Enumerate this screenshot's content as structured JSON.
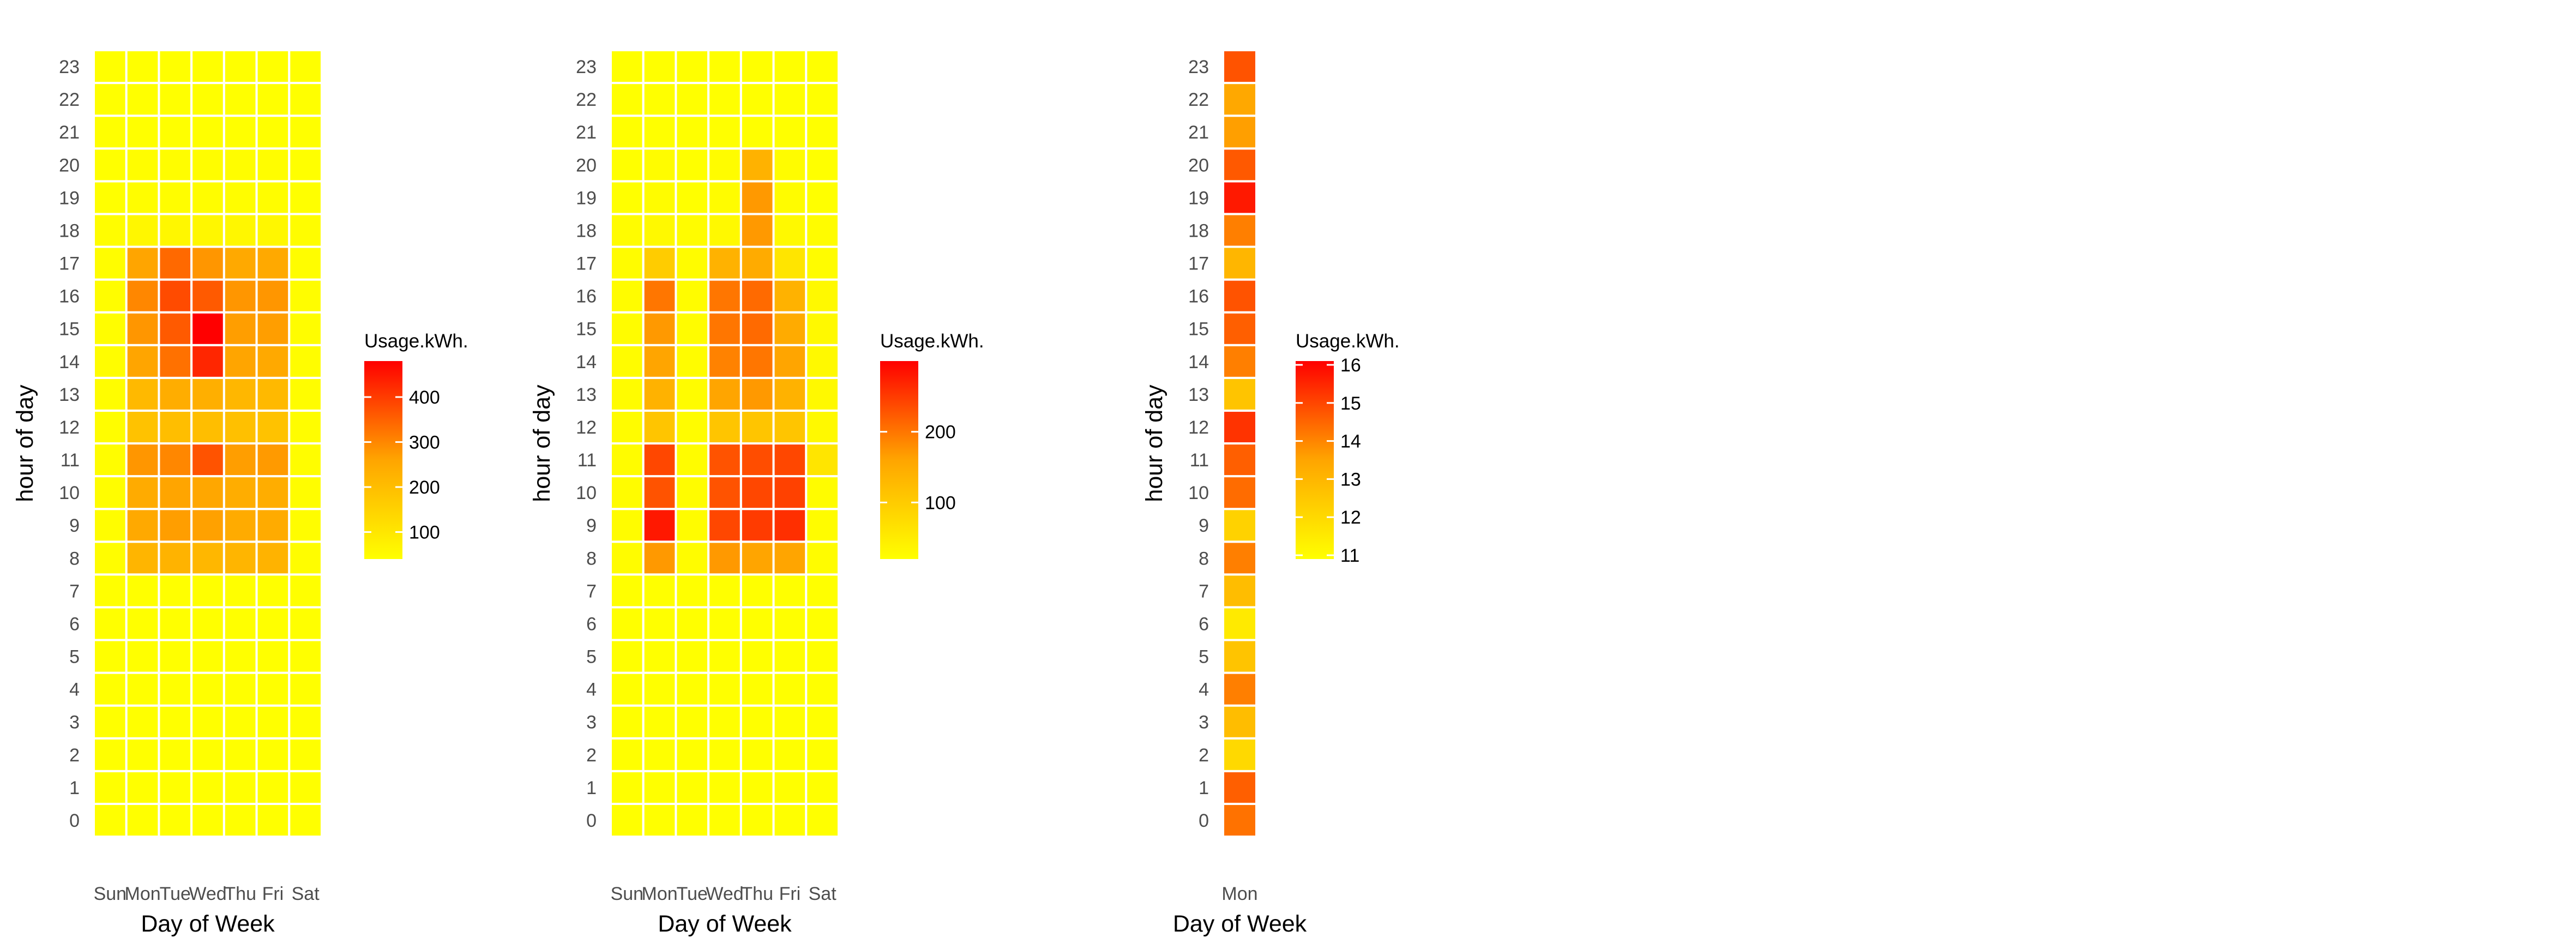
{
  "colors": {
    "low": "#ffff00",
    "mid": "#ffa500",
    "high": "#ff0000",
    "grid": "#ffffff",
    "tick_text": "#4d4d4d",
    "title_text": "#000000"
  },
  "chart_data": [
    {
      "type": "heatmap",
      "xlabel": "Day of Week",
      "ylabel": "hour of day",
      "x_categories": [
        "Sun",
        "Mon",
        "Tue",
        "Wed",
        "Thu",
        "Fri",
        "Sat"
      ],
      "y_categories": [
        "0",
        "1",
        "2",
        "3",
        "4",
        "5",
        "6",
        "7",
        "8",
        "9",
        "10",
        "11",
        "12",
        "13",
        "14",
        "15",
        "16",
        "17",
        "18",
        "19",
        "20",
        "21",
        "22",
        "23"
      ],
      "legend": {
        "title": "Usage.kWh.",
        "limits": [
          40,
          480
        ],
        "breaks": [
          100,
          200,
          300,
          400
        ],
        "placement": "right"
      },
      "values": [
        [
          40,
          40,
          40,
          40,
          40,
          40,
          40
        ],
        [
          40,
          40,
          40,
          40,
          40,
          40,
          40
        ],
        [
          40,
          40,
          40,
          40,
          40,
          40,
          40
        ],
        [
          40,
          40,
          40,
          40,
          40,
          40,
          40
        ],
        [
          40,
          40,
          40,
          40,
          40,
          40,
          40
        ],
        [
          40,
          40,
          40,
          40,
          40,
          40,
          40
        ],
        [
          40,
          40,
          40,
          40,
          40,
          40,
          40
        ],
        [
          40,
          40,
          40,
          40,
          40,
          40,
          40
        ],
        [
          45,
          220,
          225,
          215,
          220,
          225,
          45
        ],
        [
          45,
          250,
          270,
          265,
          245,
          245,
          45
        ],
        [
          45,
          245,
          260,
          255,
          240,
          240,
          45
        ],
        [
          45,
          280,
          300,
          370,
          270,
          275,
          45
        ],
        [
          45,
          190,
          200,
          200,
          195,
          190,
          45
        ],
        [
          45,
          210,
          240,
          235,
          215,
          210,
          45
        ],
        [
          45,
          260,
          330,
          430,
          260,
          250,
          45
        ],
        [
          45,
          280,
          360,
          480,
          270,
          270,
          45
        ],
        [
          45,
          300,
          380,
          360,
          280,
          280,
          45
        ],
        [
          45,
          260,
          340,
          280,
          250,
          250,
          45
        ],
        [
          45,
          60,
          60,
          60,
          60,
          60,
          45
        ],
        [
          40,
          45,
          45,
          45,
          45,
          45,
          40
        ],
        [
          40,
          45,
          45,
          45,
          45,
          45,
          40
        ],
        [
          40,
          40,
          40,
          40,
          40,
          40,
          40
        ],
        [
          40,
          40,
          40,
          40,
          40,
          40,
          40
        ],
        [
          40,
          40,
          40,
          40,
          40,
          40,
          40
        ]
      ]
    },
    {
      "type": "heatmap",
      "xlabel": "Day of Week",
      "ylabel": "hour of day",
      "x_categories": [
        "Sun",
        "Mon",
        "Tue",
        "Wed",
        "Thu",
        "Fri",
        "Sat"
      ],
      "y_categories": [
        "0",
        "1",
        "2",
        "3",
        "4",
        "5",
        "6",
        "7",
        "8",
        "9",
        "10",
        "11",
        "12",
        "13",
        "14",
        "15",
        "16",
        "17",
        "18",
        "19",
        "20",
        "21",
        "22",
        "23"
      ],
      "legend": {
        "title": "Usage.kWh.",
        "limits": [
          20,
          300
        ],
        "breaks": [
          100,
          200
        ],
        "placement": "right"
      },
      "values": [
        [
          20,
          20,
          20,
          20,
          20,
          20,
          20
        ],
        [
          20,
          20,
          20,
          20,
          20,
          20,
          20
        ],
        [
          20,
          20,
          20,
          20,
          20,
          20,
          20
        ],
        [
          20,
          20,
          20,
          20,
          20,
          20,
          20
        ],
        [
          20,
          20,
          20,
          20,
          20,
          20,
          20
        ],
        [
          20,
          20,
          20,
          20,
          20,
          20,
          20
        ],
        [
          20,
          20,
          20,
          20,
          20,
          20,
          20
        ],
        [
          20,
          20,
          20,
          20,
          20,
          20,
          20
        ],
        [
          25,
          170,
          25,
          170,
          160,
          160,
          25
        ],
        [
          25,
          280,
          25,
          240,
          250,
          260,
          25
        ],
        [
          25,
          230,
          25,
          230,
          240,
          245,
          25
        ],
        [
          25,
          240,
          25,
          230,
          235,
          240,
          60
        ],
        [
          25,
          110,
          25,
          110,
          110,
          110,
          30
        ],
        [
          25,
          140,
          25,
          160,
          170,
          140,
          30
        ],
        [
          25,
          160,
          25,
          190,
          200,
          160,
          30
        ],
        [
          25,
          170,
          25,
          200,
          210,
          150,
          30
        ],
        [
          25,
          200,
          25,
          200,
          210,
          140,
          30
        ],
        [
          25,
          100,
          25,
          140,
          150,
          60,
          25
        ],
        [
          25,
          30,
          25,
          30,
          170,
          30,
          25
        ],
        [
          20,
          25,
          20,
          25,
          170,
          25,
          20
        ],
        [
          20,
          25,
          20,
          25,
          140,
          25,
          20
        ],
        [
          20,
          20,
          20,
          20,
          20,
          20,
          20
        ],
        [
          20,
          20,
          20,
          20,
          20,
          20,
          20
        ],
        [
          20,
          20,
          20,
          20,
          20,
          20,
          20
        ]
      ]
    },
    {
      "type": "heatmap",
      "xlabel": "Day of Week",
      "ylabel": "hour of day",
      "x_categories": [
        "Mon"
      ],
      "y_categories": [
        "0",
        "1",
        "2",
        "3",
        "4",
        "5",
        "6",
        "7",
        "8",
        "9",
        "10",
        "11",
        "12",
        "13",
        "14",
        "15",
        "16",
        "17",
        "18",
        "19",
        "20",
        "21",
        "22",
        "23"
      ],
      "legend": {
        "title": "Usage.kWh.",
        "limits": [
          10.9,
          16.1
        ],
        "breaks": [
          11,
          12,
          13,
          14,
          15,
          16
        ],
        "placement": "right"
      },
      "values": [
        [
          14.3
        ],
        [
          14.6
        ],
        [
          12.0
        ],
        [
          12.8
        ],
        [
          14.1
        ],
        [
          12.6
        ],
        [
          11.5
        ],
        [
          12.8
        ],
        [
          14.1
        ],
        [
          12.2
        ],
        [
          14.4
        ],
        [
          14.6
        ],
        [
          15.3
        ],
        [
          12.6
        ],
        [
          14.1
        ],
        [
          14.6
        ],
        [
          14.8
        ],
        [
          13.0
        ],
        [
          14.1
        ],
        [
          15.7
        ],
        [
          14.7
        ],
        [
          13.6
        ],
        [
          13.4
        ],
        [
          14.8
        ]
      ]
    }
  ]
}
